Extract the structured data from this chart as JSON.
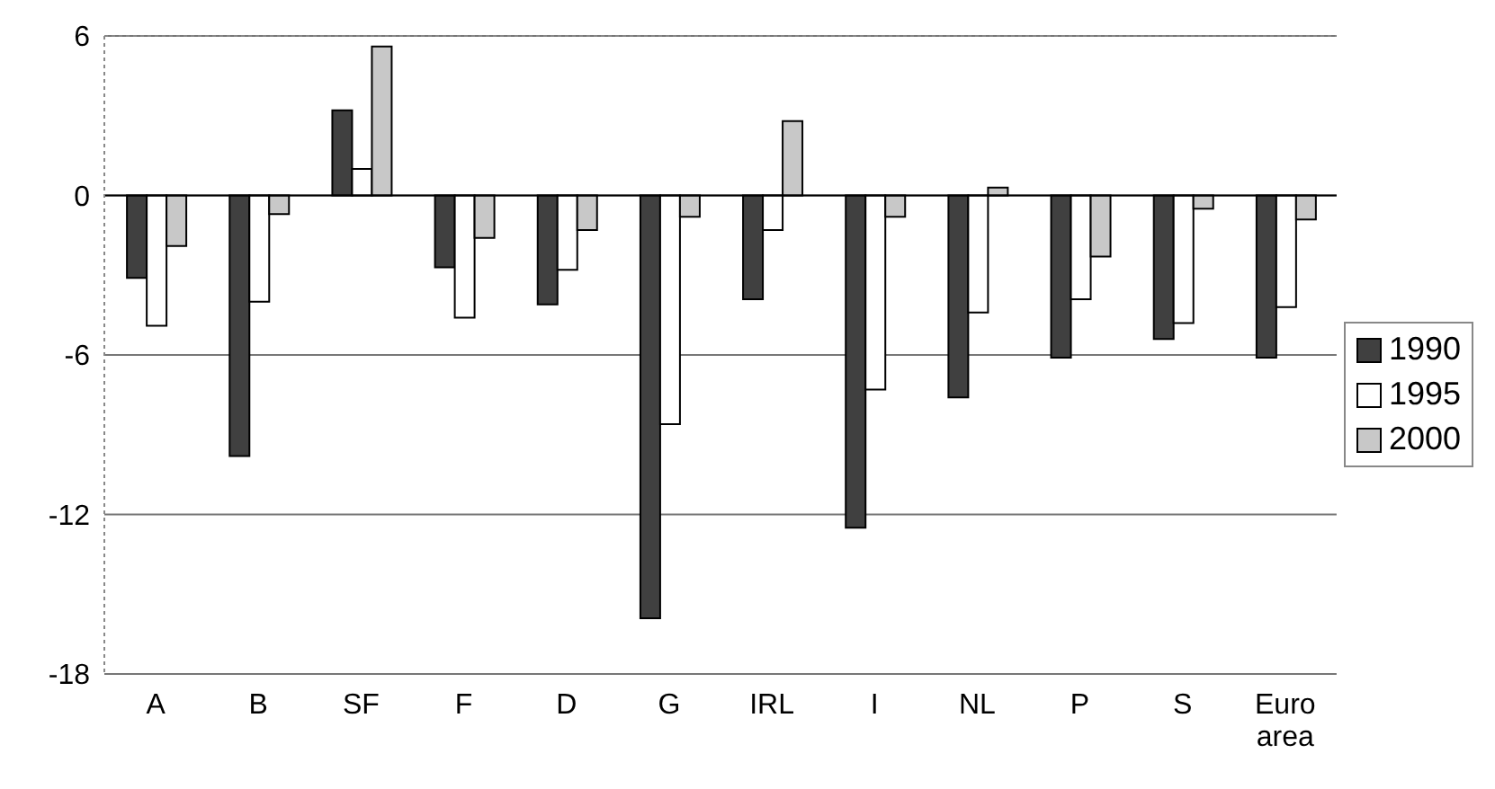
{
  "chart_data": {
    "type": "bar",
    "categories": [
      "A",
      "B",
      "SF",
      "F",
      "D",
      "G",
      "IRL",
      "I",
      "NL",
      "P",
      "S",
      "Euro area"
    ],
    "series": [
      {
        "name": "1990",
        "color": "#404040",
        "values": [
          -3.1,
          -9.8,
          3.2,
          -2.7,
          -4.1,
          -15.9,
          -3.9,
          -12.5,
          -7.6,
          -6.1,
          -5.4,
          -6.1
        ]
      },
      {
        "name": "1995",
        "color": "#ffffff",
        "values": [
          -4.9,
          -4.0,
          1.0,
          -4.6,
          -2.8,
          -8.6,
          -1.3,
          -7.3,
          -4.4,
          -3.9,
          -4.8,
          -4.2
        ]
      },
      {
        "name": "2000",
        "color": "#c8c8c8",
        "values": [
          -1.9,
          -0.7,
          5.6,
          -1.6,
          -1.3,
          -0.8,
          2.8,
          -0.8,
          0.3,
          -2.3,
          -0.5,
          -0.9
        ]
      }
    ],
    "ylim": [
      -18,
      6
    ],
    "yticks": [
      -18,
      -12,
      -6,
      0,
      6
    ],
    "grid": "y",
    "legend": "right"
  }
}
